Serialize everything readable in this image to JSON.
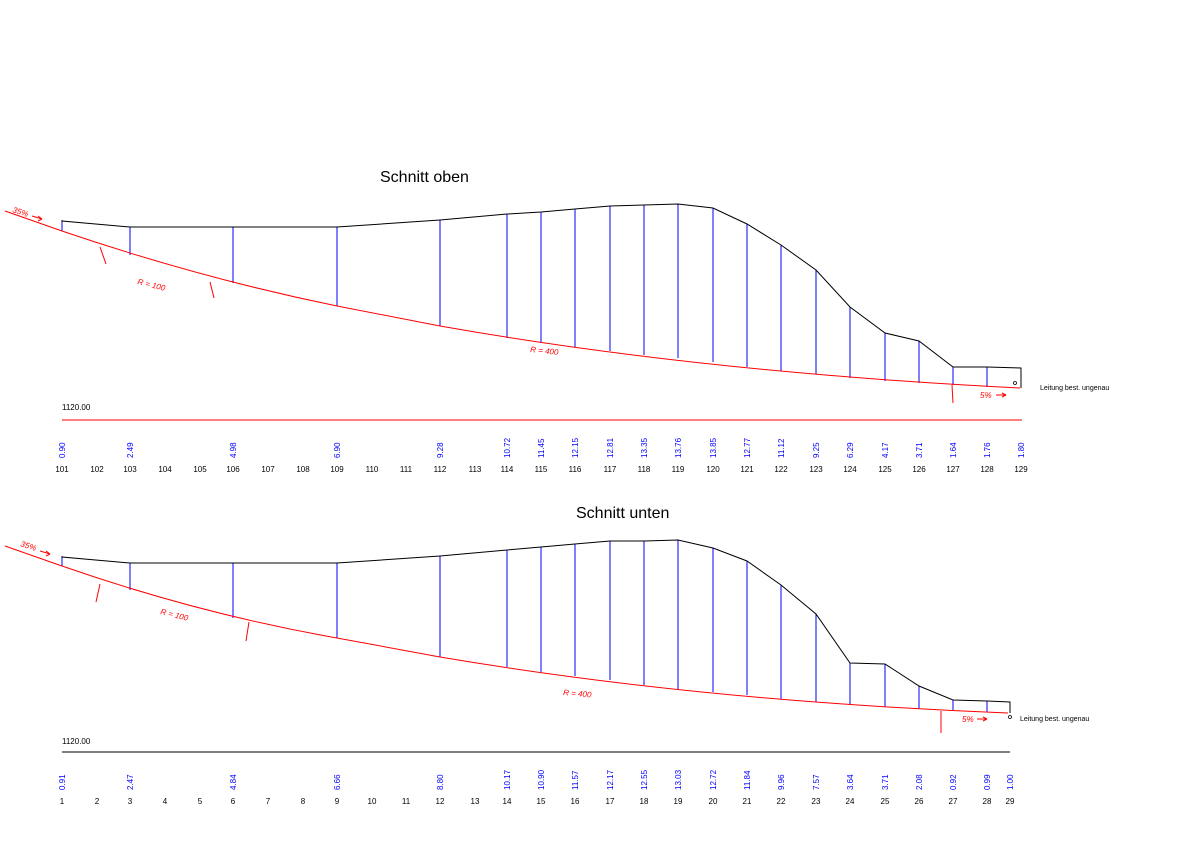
{
  "colors": {
    "terrain": "#000000",
    "road": "#ff0000",
    "height": "#0000ff"
  },
  "sections": [
    {
      "title": "Schnitt oben",
      "reference_level": "1120.00",
      "slope_start": "35%",
      "slope_end": "5%",
      "radius_labels": [
        "R = 100",
        "R = 400"
      ],
      "note": "Leitung best. ungenau",
      "stations": [
        "101",
        "102",
        "103",
        "104",
        "105",
        "106",
        "107",
        "108",
        "109",
        "110",
        "111",
        "112",
        "113",
        "114",
        "115",
        "116",
        "117",
        "118",
        "119",
        "120",
        "121",
        "122",
        "123",
        "124",
        "125",
        "126",
        "127",
        "128",
        "129"
      ],
      "heights": [
        {
          "station": "101",
          "value": "0.90"
        },
        {
          "station": "103",
          "value": "2.49"
        },
        {
          "station": "106",
          "value": "4.98"
        },
        {
          "station": "109",
          "value": "6.90"
        },
        {
          "station": "112",
          "value": "9.28"
        },
        {
          "station": "114",
          "value": "10.72"
        },
        {
          "station": "115",
          "value": "11.45"
        },
        {
          "station": "116",
          "value": "12.15"
        },
        {
          "station": "117",
          "value": "12.81"
        },
        {
          "station": "118",
          "value": "13.35"
        },
        {
          "station": "119",
          "value": "13.76"
        },
        {
          "station": "120",
          "value": "13.85"
        },
        {
          "station": "121",
          "value": "12.77"
        },
        {
          "station": "122",
          "value": "11.12"
        },
        {
          "station": "123",
          "value": "9.25"
        },
        {
          "station": "124",
          "value": "6.29"
        },
        {
          "station": "125",
          "value": "4.17"
        },
        {
          "station": "126",
          "value": "3.71"
        },
        {
          "station": "127",
          "value": "1.64"
        },
        {
          "station": "128",
          "value": "1.76"
        },
        {
          "station": "129",
          "value": "1.80"
        }
      ]
    },
    {
      "title": "Schnitt unten",
      "reference_level": "1120.00",
      "slope_start": "35%",
      "slope_end": "5%",
      "radius_labels": [
        "R = 100",
        "R = 400"
      ],
      "note": "Leitung best. ungenau",
      "stations": [
        "1",
        "2",
        "3",
        "4",
        "5",
        "6",
        "7",
        "8",
        "9",
        "10",
        "11",
        "12",
        "13",
        "14",
        "15",
        "16",
        "17",
        "18",
        "19",
        "20",
        "21",
        "22",
        "23",
        "24",
        "25",
        "26",
        "27",
        "28",
        "29"
      ],
      "heights": [
        {
          "station": "1",
          "value": "0.91"
        },
        {
          "station": "3",
          "value": "2.47"
        },
        {
          "station": "6",
          "value": "4.84"
        },
        {
          "station": "9",
          "value": "6.66"
        },
        {
          "station": "12",
          "value": "8.80"
        },
        {
          "station": "14",
          "value": "10.17"
        },
        {
          "station": "15",
          "value": "10.90"
        },
        {
          "station": "16",
          "value": "11.57"
        },
        {
          "station": "17",
          "value": "12.17"
        },
        {
          "station": "18",
          "value": "12.55"
        },
        {
          "station": "19",
          "value": "13.03"
        },
        {
          "station": "20",
          "value": "12.72"
        },
        {
          "station": "21",
          "value": "11.84"
        },
        {
          "station": "22",
          "value": "9.96"
        },
        {
          "station": "23",
          "value": "7.57"
        },
        {
          "station": "24",
          "value": "3.64"
        },
        {
          "station": "25",
          "value": "3.71"
        },
        {
          "station": "26",
          "value": "2.08"
        },
        {
          "station": "27",
          "value": "0.92"
        },
        {
          "station": "28",
          "value": "0.99"
        },
        {
          "station": "29",
          "value": "1.00"
        }
      ]
    }
  ]
}
